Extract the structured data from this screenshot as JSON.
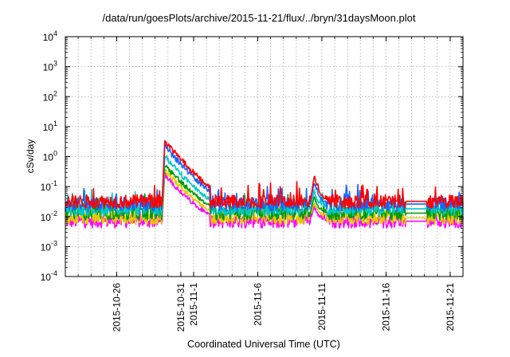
{
  "chart_data": {
    "type": "line",
    "title": "/data/run/goesPlots/archive/2015-11-21/flux/../bryn/31daysMoon.plot",
    "xlabel": "Coordinated Universal Time (UTC)",
    "ylabel": "cSv/day",
    "yscale": "log",
    "ylim": [
      0.0001,
      10000
    ],
    "xlim_days": [
      0,
      31
    ],
    "x_start_date": "2015-10-22",
    "grid": true,
    "legend": "none",
    "y_ticks": [
      {
        "value": 0.0001,
        "base": "10",
        "exp": "-4"
      },
      {
        "value": 0.001,
        "base": "10",
        "exp": "-3"
      },
      {
        "value": 0.01,
        "base": "10",
        "exp": "-2"
      },
      {
        "value": 0.1,
        "base": "10",
        "exp": "-1"
      },
      {
        "value": 1,
        "base": "10",
        "exp": "0"
      },
      {
        "value": 10,
        "base": "10",
        "exp": "1"
      },
      {
        "value": 100,
        "base": "10",
        "exp": "2"
      },
      {
        "value": 1000,
        "base": "10",
        "exp": "3"
      },
      {
        "value": 10000,
        "base": "10",
        "exp": "4"
      }
    ],
    "x_ticks": [
      {
        "day": 4,
        "label": "2015-10-26"
      },
      {
        "day": 9,
        "label": "2015-10-31"
      },
      {
        "day": 10,
        "label": "2015-11-1"
      },
      {
        "day": 15,
        "label": "2015-11-6"
      },
      {
        "day": 20,
        "label": "2015-11-11"
      },
      {
        "day": 25,
        "label": "2015-11-16"
      },
      {
        "day": 30,
        "label": "2015-11-21"
      }
    ],
    "series": [
      {
        "name": "red",
        "color": "#ff0000",
        "baseline": 0.032,
        "event1_peak": 3.2,
        "event2_peak": 0.22
      },
      {
        "name": "blue",
        "color": "#1565ff",
        "baseline": 0.026,
        "event1_peak": 2.2,
        "event2_peak": 0.15
      },
      {
        "name": "cyan",
        "color": "#00c8c8",
        "baseline": 0.018,
        "event1_peak": 1.0,
        "event2_peak": 0.07
      },
      {
        "name": "green",
        "color": "#009a00",
        "baseline": 0.013,
        "event1_peak": 0.55,
        "event2_peak": 0.045
      },
      {
        "name": "yellow",
        "color": "#e8c800",
        "baseline": 0.009,
        "event1_peak": 0.35,
        "event2_peak": 0.03
      },
      {
        "name": "magenta",
        "color": "#ff00ff",
        "baseline": 0.007,
        "event1_peak": 0.25,
        "event2_peak": 0.022
      }
    ],
    "events": [
      {
        "name": "event-1",
        "start_day": 7.55,
        "peak_day": 7.75,
        "decay_days": 0.9
      },
      {
        "name": "event-2",
        "start_day": 19.1,
        "peak_day": 19.4,
        "decay_days": 0.25
      }
    ],
    "flat_gap_days": [
      26.5,
      28.2
    ]
  }
}
